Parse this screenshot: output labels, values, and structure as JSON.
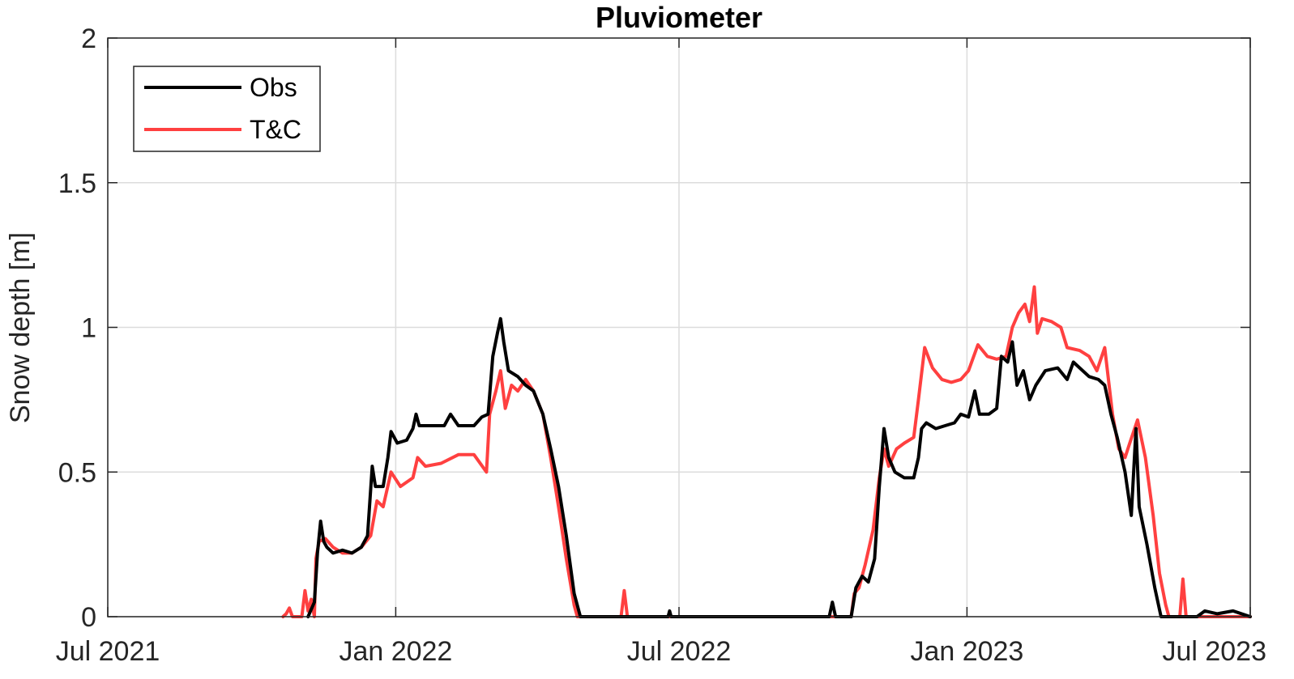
{
  "chart_data": {
    "type": "line",
    "title": "Pluviometer",
    "xlabel": "",
    "ylabel": "Snow depth [m]",
    "xlim": [
      "2021-07-01",
      "2023-07-01"
    ],
    "ylim": [
      0,
      2
    ],
    "grid": true,
    "legend_position": "top-left",
    "x_ticks": [
      {
        "date": "2021-07-01",
        "label": "Jul 2021"
      },
      {
        "date": "2022-01-01",
        "label": "Jan 2022"
      },
      {
        "date": "2022-07-01",
        "label": "Jul 2022"
      },
      {
        "date": "2023-01-01",
        "label": "Jan 2023"
      },
      {
        "date": "2023-07-01",
        "label": "Jul 2023"
      }
    ],
    "y_ticks": [
      {
        "value": 0,
        "label": "0"
      },
      {
        "value": 0.5,
        "label": "0.5"
      },
      {
        "value": 1,
        "label": "1"
      },
      {
        "value": 1.5,
        "label": "1.5"
      },
      {
        "value": 2,
        "label": "2"
      }
    ],
    "series": [
      {
        "name": "Obs",
        "color": "#000000",
        "points": [
          [
            "2021-11-06",
            0
          ],
          [
            "2021-11-10",
            0.05
          ],
          [
            "2021-11-12",
            0.22
          ],
          [
            "2021-11-14",
            0.33
          ],
          [
            "2021-11-16",
            0.26
          ],
          [
            "2021-11-18",
            0.24
          ],
          [
            "2021-11-22",
            0.22
          ],
          [
            "2021-11-28",
            0.23
          ],
          [
            "2021-12-04",
            0.22
          ],
          [
            "2021-12-10",
            0.24
          ],
          [
            "2021-12-14",
            0.28
          ],
          [
            "2021-12-17",
            0.52
          ],
          [
            "2021-12-19",
            0.45
          ],
          [
            "2021-12-24",
            0.45
          ],
          [
            "2021-12-27",
            0.55
          ],
          [
            "2021-12-29",
            0.64
          ],
          [
            "2022-01-02",
            0.6
          ],
          [
            "2022-01-08",
            0.61
          ],
          [
            "2022-01-12",
            0.65
          ],
          [
            "2022-01-14",
            0.7
          ],
          [
            "2022-01-16",
            0.66
          ],
          [
            "2022-01-25",
            0.66
          ],
          [
            "2022-02-01",
            0.66
          ],
          [
            "2022-02-05",
            0.7
          ],
          [
            "2022-02-10",
            0.66
          ],
          [
            "2022-02-20",
            0.66
          ],
          [
            "2022-02-25",
            0.69
          ],
          [
            "2022-03-01",
            0.7
          ],
          [
            "2022-03-04",
            0.9
          ],
          [
            "2022-03-07",
            0.98
          ],
          [
            "2022-03-09",
            1.03
          ],
          [
            "2022-03-11",
            0.95
          ],
          [
            "2022-03-14",
            0.85
          ],
          [
            "2022-03-20",
            0.83
          ],
          [
            "2022-03-25",
            0.8
          ],
          [
            "2022-03-30",
            0.78
          ],
          [
            "2022-04-05",
            0.7
          ],
          [
            "2022-04-10",
            0.58
          ],
          [
            "2022-04-15",
            0.45
          ],
          [
            "2022-04-20",
            0.28
          ],
          [
            "2022-04-25",
            0.08
          ],
          [
            "2022-04-29",
            0
          ],
          [
            "2022-06-24",
            0
          ],
          [
            "2022-06-25",
            0.02
          ],
          [
            "2022-06-26",
            0
          ],
          [
            "2022-10-05",
            0
          ],
          [
            "2022-10-07",
            0.05
          ],
          [
            "2022-10-09",
            0
          ],
          [
            "2022-10-19",
            0
          ],
          [
            "2022-10-22",
            0.1
          ],
          [
            "2022-10-26",
            0.14
          ],
          [
            "2022-10-30",
            0.12
          ],
          [
            "2022-11-03",
            0.2
          ],
          [
            "2022-11-06",
            0.45
          ],
          [
            "2022-11-09",
            0.65
          ],
          [
            "2022-11-12",
            0.55
          ],
          [
            "2022-11-16",
            0.5
          ],
          [
            "2022-11-22",
            0.48
          ],
          [
            "2022-11-28",
            0.48
          ],
          [
            "2022-12-01",
            0.55
          ],
          [
            "2022-12-03",
            0.65
          ],
          [
            "2022-12-06",
            0.67
          ],
          [
            "2022-12-12",
            0.65
          ],
          [
            "2022-12-18",
            0.66
          ],
          [
            "2022-12-24",
            0.67
          ],
          [
            "2022-12-28",
            0.7
          ],
          [
            "2023-01-02",
            0.69
          ],
          [
            "2023-01-06",
            0.78
          ],
          [
            "2023-01-09",
            0.7
          ],
          [
            "2023-01-15",
            0.7
          ],
          [
            "2023-01-20",
            0.72
          ],
          [
            "2023-01-23",
            0.9
          ],
          [
            "2023-01-27",
            0.88
          ],
          [
            "2023-01-30",
            0.95
          ],
          [
            "2023-02-02",
            0.8
          ],
          [
            "2023-02-06",
            0.85
          ],
          [
            "2023-02-10",
            0.75
          ],
          [
            "2023-02-14",
            0.8
          ],
          [
            "2023-02-20",
            0.85
          ],
          [
            "2023-02-28",
            0.86
          ],
          [
            "2023-03-06",
            0.82
          ],
          [
            "2023-03-10",
            0.88
          ],
          [
            "2023-03-14",
            0.86
          ],
          [
            "2023-03-20",
            0.83
          ],
          [
            "2023-03-26",
            0.82
          ],
          [
            "2023-03-30",
            0.8
          ],
          [
            "2023-04-03",
            0.7
          ],
          [
            "2023-04-07",
            0.62
          ],
          [
            "2023-04-12",
            0.5
          ],
          [
            "2023-04-16",
            0.35
          ],
          [
            "2023-04-19",
            0.65
          ],
          [
            "2023-04-21",
            0.38
          ],
          [
            "2023-04-26",
            0.25
          ],
          [
            "2023-05-01",
            0.1
          ],
          [
            "2023-05-05",
            0
          ],
          [
            "2023-05-28",
            0
          ],
          [
            "2023-06-02",
            0.02
          ],
          [
            "2023-06-10",
            0.01
          ],
          [
            "2023-06-20",
            0.02
          ],
          [
            "2023-07-01",
            0
          ]
        ]
      },
      {
        "name": "T&C",
        "color": "#ff4040",
        "points": [
          [
            "2021-10-21",
            0
          ],
          [
            "2021-10-23",
            0.01
          ],
          [
            "2021-10-25",
            0.03
          ],
          [
            "2021-10-27",
            0
          ],
          [
            "2021-11-02",
            0
          ],
          [
            "2021-11-04",
            0.09
          ],
          [
            "2021-11-06",
            0.02
          ],
          [
            "2021-11-08",
            0.06
          ],
          [
            "2021-11-10",
            0
          ],
          [
            "2021-11-11",
            0.2
          ],
          [
            "2021-11-13",
            0.26
          ],
          [
            "2021-11-17",
            0.27
          ],
          [
            "2021-11-22",
            0.24
          ],
          [
            "2021-11-28",
            0.22
          ],
          [
            "2021-12-04",
            0.22
          ],
          [
            "2021-12-10",
            0.24
          ],
          [
            "2021-12-16",
            0.28
          ],
          [
            "2021-12-20",
            0.4
          ],
          [
            "2021-12-24",
            0.38
          ],
          [
            "2021-12-29",
            0.5
          ],
          [
            "2022-01-04",
            0.45
          ],
          [
            "2022-01-12",
            0.48
          ],
          [
            "2022-01-15",
            0.55
          ],
          [
            "2022-01-20",
            0.52
          ],
          [
            "2022-01-30",
            0.53
          ],
          [
            "2022-02-10",
            0.56
          ],
          [
            "2022-02-20",
            0.56
          ],
          [
            "2022-02-28",
            0.5
          ],
          [
            "2022-03-02",
            0.7
          ],
          [
            "2022-03-06",
            0.78
          ],
          [
            "2022-03-09",
            0.85
          ],
          [
            "2022-03-12",
            0.72
          ],
          [
            "2022-03-16",
            0.8
          ],
          [
            "2022-03-20",
            0.78
          ],
          [
            "2022-03-25",
            0.82
          ],
          [
            "2022-03-30",
            0.78
          ],
          [
            "2022-04-05",
            0.7
          ],
          [
            "2022-04-10",
            0.55
          ],
          [
            "2022-04-15",
            0.38
          ],
          [
            "2022-04-20",
            0.2
          ],
          [
            "2022-04-25",
            0.04
          ],
          [
            "2022-04-27",
            0
          ],
          [
            "2022-05-25",
            0
          ],
          [
            "2022-05-27",
            0.09
          ],
          [
            "2022-05-29",
            0
          ],
          [
            "2022-10-15",
            0
          ],
          [
            "2022-10-19",
            0
          ],
          [
            "2022-10-21",
            0.08
          ],
          [
            "2022-10-24",
            0.1
          ],
          [
            "2022-10-28",
            0.18
          ],
          [
            "2022-11-02",
            0.3
          ],
          [
            "2022-11-06",
            0.48
          ],
          [
            "2022-11-09",
            0.58
          ],
          [
            "2022-11-12",
            0.52
          ],
          [
            "2022-11-17",
            0.58
          ],
          [
            "2022-11-22",
            0.6
          ],
          [
            "2022-11-28",
            0.62
          ],
          [
            "2022-12-01",
            0.75
          ],
          [
            "2022-12-05",
            0.93
          ],
          [
            "2022-12-10",
            0.86
          ],
          [
            "2022-12-16",
            0.82
          ],
          [
            "2022-12-22",
            0.81
          ],
          [
            "2022-12-28",
            0.82
          ],
          [
            "2023-01-02",
            0.85
          ],
          [
            "2023-01-08",
            0.94
          ],
          [
            "2023-01-14",
            0.9
          ],
          [
            "2023-01-20",
            0.89
          ],
          [
            "2023-01-26",
            0.9
          ],
          [
            "2023-01-30",
            1.0
          ],
          [
            "2023-02-03",
            1.05
          ],
          [
            "2023-02-07",
            1.08
          ],
          [
            "2023-02-10",
            1.02
          ],
          [
            "2023-02-13",
            1.14
          ],
          [
            "2023-02-15",
            0.98
          ],
          [
            "2023-02-18",
            1.03
          ],
          [
            "2023-02-24",
            1.02
          ],
          [
            "2023-03-02",
            1.0
          ],
          [
            "2023-03-06",
            0.93
          ],
          [
            "2023-03-14",
            0.92
          ],
          [
            "2023-03-20",
            0.9
          ],
          [
            "2023-03-25",
            0.85
          ],
          [
            "2023-03-30",
            0.93
          ],
          [
            "2023-04-04",
            0.7
          ],
          [
            "2023-04-08",
            0.58
          ],
          [
            "2023-04-12",
            0.55
          ],
          [
            "2023-04-15",
            0.6
          ],
          [
            "2023-04-20",
            0.68
          ],
          [
            "2023-04-25",
            0.55
          ],
          [
            "2023-04-30",
            0.35
          ],
          [
            "2023-05-04",
            0.15
          ],
          [
            "2023-05-08",
            0.04
          ],
          [
            "2023-05-10",
            0
          ],
          [
            "2023-05-17",
            0
          ],
          [
            "2023-05-19",
            0.13
          ],
          [
            "2023-05-21",
            0
          ],
          [
            "2023-07-01",
            0
          ]
        ]
      }
    ]
  }
}
